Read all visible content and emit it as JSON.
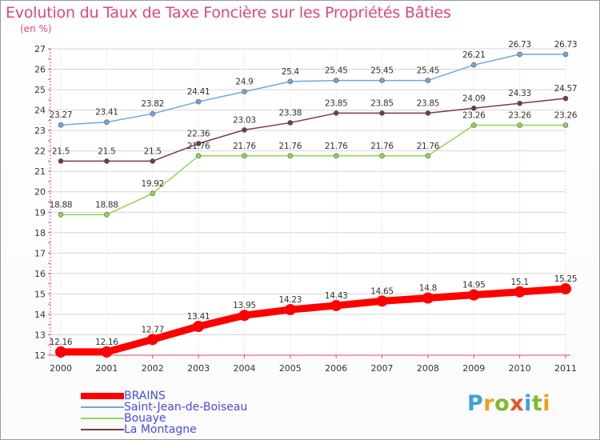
{
  "title": "Evolution du Taux de Taxe Foncière sur les Propriétés Bâties",
  "unit_label": "(en %)",
  "logo": {
    "letters": [
      "P",
      "r",
      "o",
      "x",
      "i",
      "t",
      "i"
    ],
    "colors": [
      "#3ea0dc",
      "#e8a21a",
      "#7dbb2d",
      "#e8542a",
      "#3ea0dc",
      "#7dbb2d",
      "#e8a21a"
    ]
  },
  "chart_data": {
    "type": "line",
    "x": [
      "2000",
      "2001",
      "2002",
      "2003",
      "2004",
      "2005",
      "2006",
      "2007",
      "2008",
      "2009",
      "2010",
      "2011"
    ],
    "ylim": [
      12,
      27
    ],
    "yticks": [
      "12",
      "13",
      "14",
      "15",
      "16",
      "17",
      "18",
      "19",
      "20",
      "21",
      "22",
      "23",
      "24",
      "25",
      "26",
      "27"
    ],
    "grid": true,
    "legend_position": "bottom-left",
    "series": [
      {
        "name": "BRAINS",
        "color": "#ff0000",
        "values": [
          12.16,
          12.16,
          12.77,
          13.41,
          13.95,
          14.23,
          14.43,
          14.65,
          14.8,
          14.95,
          15.1,
          15.25
        ],
        "labels": [
          "12.16",
          "12.16",
          "12.77",
          "13.41",
          "13.95",
          "14.23",
          "14.43",
          "14.65",
          "14.8",
          "14.95",
          "15.1",
          "15.25"
        ]
      },
      {
        "name": "Saint-Jean-de-Boiseau",
        "color": "#6fa8dc",
        "values": [
          23.27,
          23.41,
          23.82,
          24.41,
          24.9,
          25.4,
          25.45,
          25.45,
          25.45,
          26.21,
          26.73,
          26.73
        ],
        "labels": [
          "23.27",
          "23.41",
          "23.82",
          "24.41",
          "24.9",
          "25.4",
          "25.45",
          "25.45",
          "25.45",
          "26.21",
          "26.73",
          "26.73"
        ]
      },
      {
        "name": "Bouaye",
        "color": "#8fd651",
        "values": [
          18.88,
          18.88,
          19.92,
          21.76,
          21.76,
          21.76,
          21.76,
          21.76,
          21.76,
          23.26,
          23.26,
          23.26
        ],
        "labels": [
          "18.88",
          "18.88",
          "19.92",
          "21.76",
          "21.76",
          "21.76",
          "21.76",
          "21.76",
          "21.76",
          "23.26",
          "23.26",
          "23.26"
        ]
      },
      {
        "name": "La Montagne",
        "color": "#7a3a3a",
        "values": [
          21.5,
          21.5,
          21.5,
          22.36,
          23.03,
          23.38,
          23.85,
          23.85,
          23.85,
          24.09,
          24.33,
          24.57
        ],
        "labels": [
          "21.5",
          "21.5",
          "21.5",
          "22.36",
          "23.03",
          "23.38",
          "23.85",
          "23.85",
          "23.85",
          "24.09",
          "24.33",
          "24.57"
        ]
      }
    ]
  }
}
